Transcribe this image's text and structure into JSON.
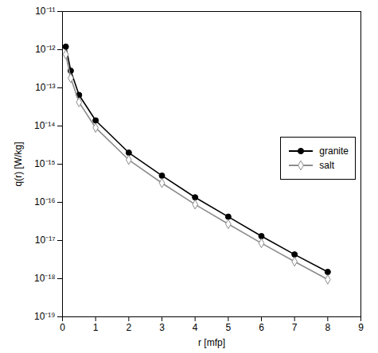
{
  "chart_data": {
    "type": "line",
    "x_label": "r [mfp]",
    "y_label": "q(r) [W/kg]",
    "log": "y",
    "legend": "right",
    "xlim": [
      0,
      9
    ],
    "xticks": [
      0,
      1,
      2,
      3,
      4,
      5,
      6,
      7,
      8,
      9
    ],
    "ylim": [
      1e-19,
      1e-11
    ],
    "yticks": [
      {
        "value": 1e-19,
        "label": "10⁻¹⁹"
      },
      {
        "value": 1e-18,
        "label": "10⁻¹⁸"
      },
      {
        "value": 1e-17,
        "label": "10⁻¹⁷"
      },
      {
        "value": 1e-16,
        "label": "10⁻¹⁶"
      },
      {
        "value": 1e-15,
        "label": "10⁻¹⁵"
      },
      {
        "value": 1e-14,
        "label": "10⁻¹⁴"
      },
      {
        "value": 1e-13,
        "label": "10⁻¹³"
      },
      {
        "value": 1e-12,
        "label": "10⁻¹²"
      },
      {
        "value": 1e-11,
        "label": "10⁻¹¹"
      }
    ],
    "x": [
      0.1,
      0.25,
      0.5,
      1,
      2,
      3,
      4,
      5,
      6,
      7,
      8
    ],
    "series": [
      {
        "name": "granite",
        "color": "#000000",
        "marker": "filled circle",
        "values": [
          1.2e-12,
          2.8e-13,
          6.5e-14,
          1.4e-14,
          2e-15,
          5e-16,
          1.35e-16,
          4.2e-17,
          1.3e-17,
          4.3e-18,
          1.5e-18
        ]
      },
      {
        "name": "salt",
        "color": "#8c8c8c",
        "marker": "open diamond",
        "values": [
          7.5e-13,
          1.8e-13,
          4.2e-14,
          9e-15,
          1.3e-15,
          3.2e-16,
          8.8e-17,
          2.7e-17,
          8.5e-18,
          2.8e-18,
          9.5e-19
        ]
      }
    ]
  }
}
